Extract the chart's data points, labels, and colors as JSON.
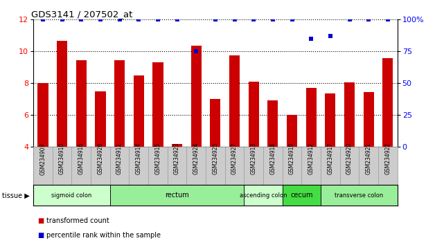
{
  "title": "GDS3141 / 207502_at",
  "samples": [
    "GSM234909",
    "GSM234910",
    "GSM234916",
    "GSM234926",
    "GSM234911",
    "GSM234914",
    "GSM234915",
    "GSM234923",
    "GSM234924",
    "GSM234925",
    "GSM234927",
    "GSM234913",
    "GSM234918",
    "GSM234919",
    "GSM234912",
    "GSM234917",
    "GSM234920",
    "GSM234921",
    "GSM234922"
  ],
  "bar_values": [
    8.0,
    10.65,
    9.45,
    7.5,
    9.45,
    8.5,
    9.3,
    4.2,
    10.35,
    7.0,
    9.75,
    8.1,
    6.95,
    6.0,
    7.7,
    7.35,
    8.05,
    7.45,
    9.6
  ],
  "percentile_values": [
    100,
    100,
    100,
    100,
    100,
    100,
    100,
    100,
    75,
    100,
    100,
    100,
    100,
    100,
    85,
    87,
    100,
    100,
    100
  ],
  "bar_color": "#cc0000",
  "percentile_color": "#0000cc",
  "ylim_left": [
    4,
    12
  ],
  "ylim_right": [
    0,
    100
  ],
  "yticks_left": [
    4,
    6,
    8,
    10,
    12
  ],
  "yticks_right": [
    0,
    25,
    50,
    75,
    100
  ],
  "ytick_labels_right": [
    "0",
    "25",
    "50",
    "75",
    "100%"
  ],
  "tissue_groups": [
    {
      "label": "sigmoid colon",
      "start": 0,
      "end": 3,
      "color": "#ccffcc"
    },
    {
      "label": "rectum",
      "start": 4,
      "end": 10,
      "color": "#99ee99"
    },
    {
      "label": "ascending colon",
      "start": 11,
      "end": 12,
      "color": "#ccffcc"
    },
    {
      "label": "cecum",
      "start": 13,
      "end": 14,
      "color": "#44dd44"
    },
    {
      "label": "transverse colon",
      "start": 15,
      "end": 18,
      "color": "#99ee99"
    }
  ],
  "tissue_label": "tissue",
  "legend_items": [
    {
      "label": "transformed count",
      "color": "#cc0000"
    },
    {
      "label": "percentile rank within the sample",
      "color": "#0000cc"
    }
  ],
  "bg_color": "#ffffff",
  "ticklabel_bg": "#cccccc",
  "bar_bottom": 4
}
